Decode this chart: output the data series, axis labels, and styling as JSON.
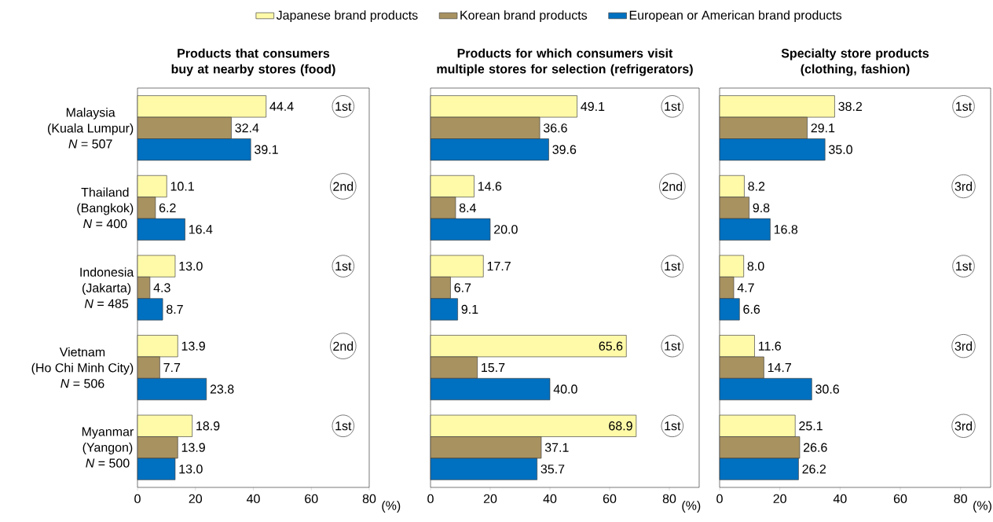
{
  "chart_data": [
    {
      "type": "bar",
      "orientation": "horizontal",
      "title": "Products that consumers buy at nearby stores (food)",
      "categories": [
        "Malaysia\n(Kuala Lumpur)\n*N* = 507",
        "Thailand\n(Bangkok)\n*N* = 400",
        "Indonesia\n(Jakarta)\n*N* = 485",
        "Vietnam\n(Ho Chi Minh City)\n*N* = 506",
        "Myanmar\n(Yangon)\n*N* = 500"
      ],
      "series": [
        {
          "name": "Japanese brand products",
          "color": "#fffaa8",
          "values": [
            44.4,
            10.1,
            13.0,
            13.9,
            18.9
          ],
          "value_labels": [
            "44.4",
            "10.1",
            "13.0",
            "13.9",
            "18.9"
          ]
        },
        {
          "name": "Korean brand products",
          "color": "#a89260",
          "values": [
            32.4,
            6.2,
            4.3,
            7.7,
            13.9
          ],
          "value_labels": [
            "32.4",
            "6.2",
            "4.3",
            "7.7",
            "13.9"
          ]
        },
        {
          "name": "European or American brand products",
          "color": "#0070c0",
          "values": [
            39.1,
            16.4,
            8.7,
            23.8,
            13.0
          ],
          "value_labels": [
            "39.1",
            "16.4",
            "8.7",
            "23.8",
            "13.0"
          ]
        }
      ],
      "xlim": [
        0,
        80
      ],
      "xticks": [
        0,
        20,
        40,
        60,
        80
      ],
      "xlabel": "(%)",
      "legend": "top",
      "annotations": [
        "1st",
        "2nd",
        "1st",
        "2nd",
        "1st"
      ]
    },
    {
      "type": "bar",
      "orientation": "horizontal",
      "title": "Products for which consumers visit multiple stores for selection (refrigerators)",
      "categories": [
        null,
        null,
        null,
        null,
        null
      ],
      "series": [
        {
          "color": "#fffaa8",
          "values": [
            49.1,
            14.6,
            17.7,
            65.6,
            68.9
          ],
          "value_labels": [
            "49.1",
            "14.6",
            "17.7",
            "65.6",
            "68.9"
          ]
        },
        {
          "color": "#a89260",
          "values": [
            36.6,
            8.4,
            6.7,
            15.7,
            37.1
          ],
          "value_labels": [
            "36.6",
            "8.4",
            "6.7",
            "15.7",
            "37.1"
          ]
        },
        {
          "color": "#0070c0",
          "values": [
            39.6,
            20.0,
            9.1,
            40.0,
            35.7
          ],
          "value_labels": [
            "39.6",
            "20.0",
            "9.1",
            "40.0",
            "35.7"
          ]
        }
      ],
      "xlim": [
        0,
        90
      ],
      "xticks": [
        0,
        20,
        40,
        60,
        80
      ],
      "xlabel": "(%)",
      "tick_labels": "x",
      "annotations": [
        "1st",
        "2nd",
        "1st",
        "1st",
        "1st"
      ]
    },
    {
      "type": "bar",
      "orientation": "horizontal",
      "title": "Specialty store products (clothing, fashion)",
      "categories": [
        null,
        null,
        null,
        null,
        null
      ],
      "series": [
        {
          "color": "#fffaa8",
          "values": [
            38.2,
            8.2,
            8.0,
            11.6,
            25.1
          ],
          "value_labels": [
            "38.2",
            "8.2",
            "8.0",
            "11.6",
            "25.1"
          ]
        },
        {
          "color": "#a89260",
          "values": [
            29.1,
            9.8,
            4.7,
            14.7,
            26.6
          ],
          "value_labels": [
            "29.1",
            "9.8",
            "4.7",
            "14.7",
            "26.6"
          ]
        },
        {
          "color": "#0070c0",
          "values": [
            35.0,
            16.8,
            6.6,
            30.6,
            26.2
          ],
          "value_labels": [
            "35.0",
            "16.8",
            "6.6",
            "30.6",
            "26.2"
          ]
        }
      ],
      "xlim": [
        0,
        90
      ],
      "xticks": [
        0,
        20,
        40,
        60,
        80
      ],
      "xlabel": "(%)",
      "tick_labels": "x",
      "annotations": [
        "1st",
        "3rd",
        "1st",
        "3rd",
        "3rd"
      ]
    }
  ]
}
